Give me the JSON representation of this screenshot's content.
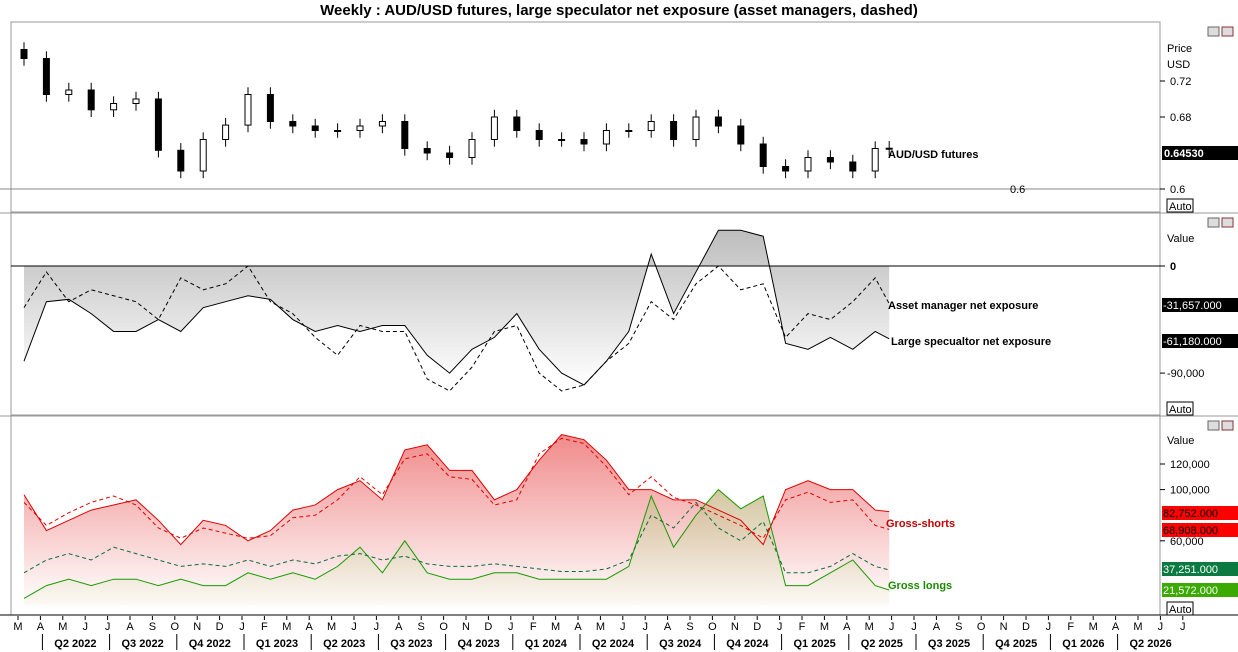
{
  "title": "Weekly : AUD/USD futures, large speculator net exposure (asset managers, dashed)",
  "chart_data": [
    {
      "type": "candlestick",
      "panel": "price",
      "ylabel": "Price",
      "unit": "USD",
      "yticks": [
        0.72,
        0.68,
        0.6
      ],
      "ylim": [
        0.59,
        0.78
      ],
      "hline": 0.6,
      "hline_label": "0.6",
      "series_label": "AUD/USD futures",
      "last_value_label": "0.64530",
      "scale_button": "Auto",
      "closes": [
        0.745,
        0.705,
        0.71,
        0.688,
        0.695,
        0.7,
        0.643,
        0.62,
        0.655,
        0.671,
        0.705,
        0.675,
        0.67,
        0.665,
        0.665,
        0.67,
        0.675,
        0.645,
        0.64,
        0.635,
        0.655,
        0.68,
        0.665,
        0.655,
        0.655,
        0.65,
        0.665,
        0.665,
        0.675,
        0.655,
        0.68,
        0.67,
        0.65,
        0.625,
        0.62,
        0.635,
        0.63,
        0.62,
        0.645,
        0.6453
      ]
    },
    {
      "type": "line",
      "panel": "net",
      "ylabel": "Value",
      "yticks": [
        0,
        -90000
      ],
      "zero_label": "0",
      "tick_label_90": "-90,000",
      "scale_button": "Auto",
      "series": [
        {
          "name": "Asset manager net exposure",
          "style": "dashed",
          "last_label": "-31,657.000",
          "values": [
            -35000,
            -5000,
            -30000,
            -20000,
            -25000,
            -30000,
            -45000,
            -10000,
            -20000,
            -15000,
            0,
            -30000,
            -40000,
            -60000,
            -75000,
            -50000,
            -55000,
            -55000,
            -95000,
            -105000,
            -85000,
            -55000,
            -50000,
            -90000,
            -105000,
            -100000,
            -80000,
            -65000,
            -30000,
            -45000,
            -15000,
            0,
            -20000,
            -15000,
            -60000,
            -40000,
            -45000,
            -30000,
            -10000,
            -31657
          ]
        },
        {
          "name": "Large specualtor net exposure",
          "style": "solid",
          "last_label": "-61,180.000",
          "values": [
            -80000,
            -30000,
            -28000,
            -40000,
            -55000,
            -55000,
            -45000,
            -55000,
            -35000,
            -30000,
            -25000,
            -28000,
            -45000,
            -55000,
            -50000,
            -55000,
            -50000,
            -50000,
            -75000,
            -90000,
            -70000,
            -60000,
            -40000,
            -70000,
            -90000,
            -100000,
            -80000,
            -55000,
            10000,
            -40000,
            -5000,
            30000,
            30000,
            25000,
            -65000,
            -70000,
            -60000,
            -70000,
            -55000,
            -61180
          ]
        }
      ]
    },
    {
      "type": "line",
      "panel": "gross",
      "ylabel": "Value",
      "yticks": [
        120000,
        100000,
        60000
      ],
      "ytick_labels": [
        "120,000",
        "100,000",
        "60,000"
      ],
      "scale_button": "Auto",
      "series": [
        {
          "name": "Gross-shorts",
          "style": "solid",
          "color": "#e00000",
          "last_label": "82,752.000",
          "values": [
            96000,
            68000,
            76000,
            84000,
            88000,
            92000,
            76000,
            57000,
            76000,
            72000,
            60000,
            68000,
            84000,
            88000,
            100000,
            107000,
            92000,
            131000,
            135000,
            115000,
            115000,
            92000,
            100000,
            123000,
            143000,
            139000,
            123000,
            100000,
            100000,
            92000,
            92000,
            84000,
            76000,
            57000,
            100000,
            107000,
            100000,
            100000,
            84000,
            82752
          ]
        },
        {
          "name": "",
          "style": "dashed",
          "color": "#e00000",
          "last_label": "68,908.000",
          "values": [
            90000,
            72000,
            82000,
            90000,
            95000,
            88000,
            70000,
            62000,
            70000,
            66000,
            62000,
            64000,
            78000,
            80000,
            92000,
            110000,
            96000,
            124000,
            128000,
            110000,
            108000,
            88000,
            92000,
            128000,
            140000,
            136000,
            118000,
            96000,
            110000,
            94000,
            88000,
            80000,
            72000,
            62000,
            92000,
            98000,
            90000,
            92000,
            72000,
            68908
          ]
        },
        {
          "name": "Gross longs",
          "style": "solid",
          "color": "#1a9a00",
          "last_label": "21,572.000",
          "values": [
            15000,
            25000,
            30000,
            25000,
            30000,
            30000,
            25000,
            30000,
            25000,
            25000,
            35000,
            30000,
            35000,
            30000,
            40000,
            55000,
            35000,
            60000,
            35000,
            30000,
            30000,
            35000,
            35000,
            30000,
            30000,
            30000,
            30000,
            40000,
            95000,
            55000,
            80000,
            100000,
            85000,
            95000,
            25000,
            25000,
            35000,
            45000,
            25000,
            21572
          ]
        },
        {
          "name": "",
          "style": "dashed",
          "color": "#0a6a3a",
          "last_label": "37,251.000",
          "values": [
            35000,
            45000,
            50000,
            45000,
            55000,
            50000,
            45000,
            40000,
            42000,
            40000,
            45000,
            40000,
            45000,
            42000,
            48000,
            50000,
            45000,
            48000,
            42000,
            40000,
            40000,
            42000,
            40000,
            38000,
            36000,
            36000,
            38000,
            45000,
            80000,
            70000,
            90000,
            70000,
            60000,
            75000,
            35000,
            35000,
            40000,
            50000,
            40000,
            37251
          ]
        }
      ]
    }
  ],
  "x_axis": {
    "months": [
      "M",
      "A",
      "M",
      "J",
      "J",
      "A",
      "S",
      "O",
      "N",
      "D",
      "J",
      "F",
      "M",
      "A",
      "M",
      "J",
      "J",
      "A",
      "S",
      "O",
      "N",
      "D",
      "J",
      "F",
      "M",
      "A",
      "M",
      "J",
      "J",
      "A",
      "S",
      "O",
      "N",
      "D",
      "J",
      "F",
      "M",
      "A",
      "M",
      "J",
      "J",
      "A",
      "S",
      "O",
      "N",
      "D",
      "J",
      "F",
      "M",
      "A",
      "M",
      "J",
      "J"
    ],
    "quarters": [
      "Q2 2022",
      "Q3 2022",
      "Q4 2022",
      "Q1 2023",
      "Q2 2023",
      "Q3 2023",
      "Q4 2023",
      "Q1 2024",
      "Q2 2024",
      "Q3 2024",
      "Q4 2024",
      "Q1 2025",
      "Q2 2025",
      "Q3 2025",
      "Q4 2025",
      "Q1 2026",
      "Q2 2026"
    ]
  }
}
